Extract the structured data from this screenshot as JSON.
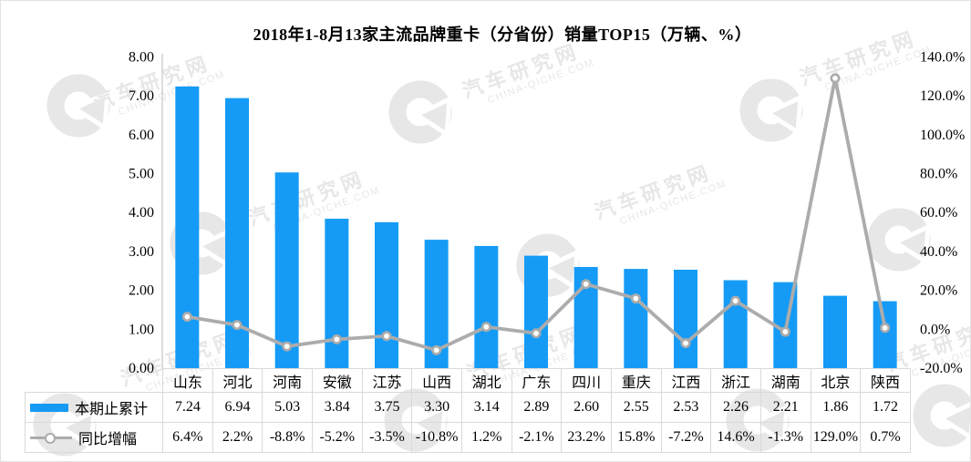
{
  "title": "2018年1-8月13家主流品牌重卡（分省份）销量TOP15（万辆、%）",
  "watermark": {
    "site_name": "汽车研究网",
    "site_url": "CHINA-QICHE.COM"
  },
  "legend": {
    "bars_label": "本期止累计",
    "line_label": "同比增幅"
  },
  "colors": {
    "bar": "#159BF5",
    "line": "#ACACAC",
    "marker_fill": "#FFFFFF",
    "axis": "#D0D0D0",
    "table_border": "#D9D9D9",
    "text": "#000000",
    "watermark": "#E7E7E7"
  },
  "chart_data": {
    "type": "bar+line",
    "title": "2018年1-8月13家主流品牌重卡（分省份）销量TOP15（万辆、%）",
    "categories": [
      "山东",
      "河北",
      "河南",
      "安徽",
      "江苏",
      "山西",
      "湖北",
      "广东",
      "四川",
      "重庆",
      "江西",
      "浙江",
      "湖南",
      "北京",
      "陕西"
    ],
    "series": [
      {
        "name": "本期止累计",
        "type": "bar",
        "axis": "left",
        "unit": "万辆",
        "values": [
          7.24,
          6.94,
          5.03,
          3.84,
          3.75,
          3.3,
          3.14,
          2.89,
          2.6,
          2.55,
          2.53,
          2.26,
          2.21,
          1.86,
          1.72
        ],
        "labels": [
          "7.24",
          "6.94",
          "5.03",
          "3.84",
          "3.75",
          "3.30",
          "3.14",
          "2.89",
          "2.60",
          "2.55",
          "2.53",
          "2.26",
          "2.21",
          "1.86",
          "1.72"
        ]
      },
      {
        "name": "同比增幅",
        "type": "line",
        "axis": "right",
        "unit": "%",
        "values": [
          6.4,
          2.2,
          -8.8,
          -5.2,
          -3.5,
          -10.8,
          1.2,
          -2.1,
          23.2,
          15.8,
          -7.2,
          14.6,
          -1.3,
          129.0,
          0.7
        ],
        "labels": [
          "6.4%",
          "2.2%",
          "-8.8%",
          "-5.2%",
          "-3.5%",
          "-10.8%",
          "1.2%",
          "-2.1%",
          "23.2%",
          "15.8%",
          "-7.2%",
          "14.6%",
          "-1.3%",
          "129.0%",
          "0.7%"
        ]
      }
    ],
    "y_left": {
      "min": 0,
      "max": 8,
      "step": 1,
      "ticks": [
        "0.00",
        "1.00",
        "2.00",
        "3.00",
        "4.00",
        "5.00",
        "6.00",
        "7.00",
        "8.00"
      ]
    },
    "y_right": {
      "min": -20,
      "max": 140,
      "step": 20,
      "ticks": [
        "-20.0%",
        "0.0%",
        "20.0%",
        "40.0%",
        "60.0%",
        "80.0%",
        "100.0%",
        "120.0%",
        "140.0%"
      ]
    },
    "grid": false,
    "legend_position": "bottom-left-table"
  }
}
